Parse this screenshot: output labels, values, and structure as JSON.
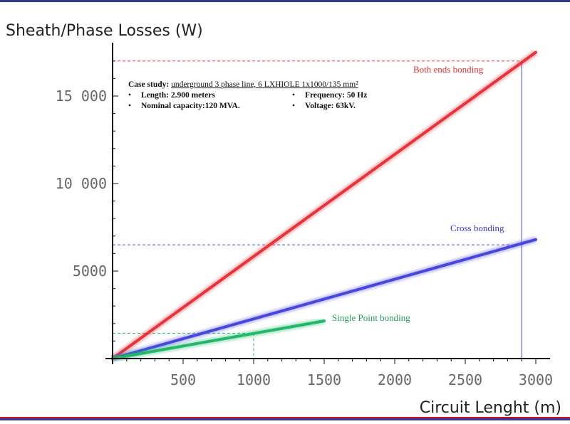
{
  "chart_data": {
    "type": "line",
    "ylabel": "Sheath/Phase Losses (W)",
    "xlabel": "Circuit Lenght (m)",
    "xlim": [
      0,
      3000
    ],
    "ylim": [
      0,
      17500
    ],
    "x_ticks": [
      "500",
      "1000",
      "1500",
      "2000",
      "2500",
      "3000"
    ],
    "y_ticks": [
      "5000",
      "10 000",
      "15 000"
    ],
    "x_tick_values": [
      500,
      1000,
      1500,
      2000,
      2500,
      3000
    ],
    "y_tick_values": [
      5000,
      10000,
      15000
    ],
    "series": [
      {
        "name": "Both ends bonding",
        "color": "#e8333a",
        "x": [
          0,
          3000
        ],
        "y": [
          0,
          17500
        ],
        "marker_x": 2900,
        "marker_y": 17000
      },
      {
        "name": "Cross bonding",
        "color": "#4747e0",
        "x": [
          0,
          3000
        ],
        "y": [
          0,
          6800
        ],
        "marker_x": 2900,
        "marker_y": 6500
      },
      {
        "name": "Single Point bonding",
        "color": "#22b86a",
        "x": [
          0,
          1500
        ],
        "y": [
          0,
          2150
        ],
        "marker_x": 1000,
        "marker_y": 1450
      }
    ],
    "annotation": {
      "title_label": "Case study:",
      "title_text": "underground  3 phase line,   6 LXHIOLE  1x1000/135  mm²",
      "items": [
        "Length: 2.900 meters",
        "Frequency: 50 Hz",
        "Nominal  capacity:120  MVA.",
        "Voltage: 63kV."
      ]
    }
  }
}
